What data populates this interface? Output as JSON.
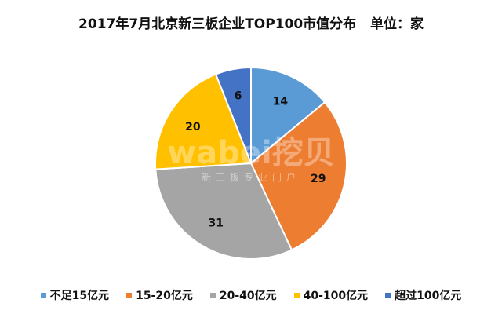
{
  "chart_data": {
    "type": "pie",
    "title": "2017年7月北京新三板企业TOP100市值分布   单位：家",
    "categories": [
      "不足15亿元",
      "15-20亿元",
      "20-40亿元",
      "40-100亿元",
      "超过100亿元"
    ],
    "values": [
      14,
      29,
      31,
      20,
      6
    ],
    "colors": [
      "#5B9BD5",
      "#ED7D31",
      "#A5A5A5",
      "#FFC000",
      "#4472C4"
    ],
    "start_angle": "top",
    "direction": "clockwise",
    "data_labels": true,
    "legend_placement": "bottom"
  },
  "watermark": {
    "logo": "wabei挖贝",
    "tagline": "新三板专业门户"
  }
}
